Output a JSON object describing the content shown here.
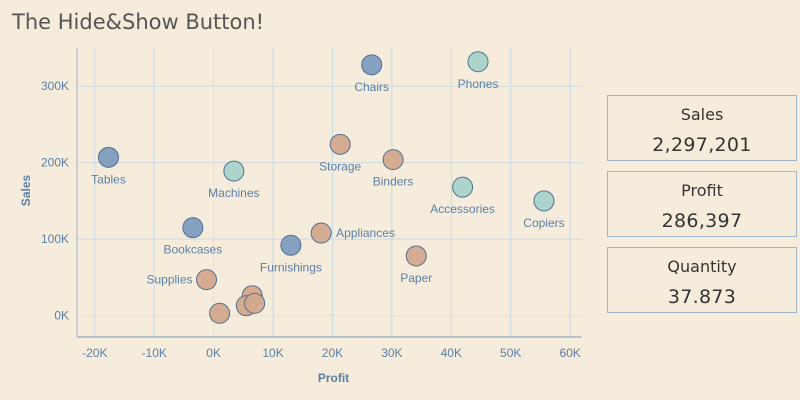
{
  "title": "The Hide&Show Button!",
  "kpis": [
    {
      "label": "Sales",
      "value": "2,297,201"
    },
    {
      "label": "Profit",
      "value": "286,397"
    },
    {
      "label": "Quantity",
      "value": "37.873"
    }
  ],
  "colors": {
    "background": "#f5ecdc",
    "grid": "#cdd9e2",
    "axis": "#9fb5c8",
    "label": "#5b7fa6",
    "text": "#555555",
    "blue": "#7f9dbd",
    "green": "#a9d3c9",
    "tan": "#d3a98c",
    "marker_stroke": "#4f6f94"
  },
  "chart_data": {
    "type": "scatter",
    "title": "",
    "xlabel": "Profit",
    "ylabel": "Sales",
    "xlim": [
      -23000,
      62000
    ],
    "ylim": [
      -28000,
      350000
    ],
    "x_ticks": [
      {
        "value": -20000,
        "label": "-20K"
      },
      {
        "value": -10000,
        "label": "-10K"
      },
      {
        "value": 0,
        "label": "0K"
      },
      {
        "value": 10000,
        "label": "10K"
      },
      {
        "value": 20000,
        "label": "20K"
      },
      {
        "value": 30000,
        "label": "30K"
      },
      {
        "value": 40000,
        "label": "40K"
      },
      {
        "value": 50000,
        "label": "50K"
      },
      {
        "value": 60000,
        "label": "60K"
      }
    ],
    "y_ticks": [
      {
        "value": 0,
        "label": "0K"
      },
      {
        "value": 100000,
        "label": "100K"
      },
      {
        "value": 200000,
        "label": "200K"
      },
      {
        "value": 300000,
        "label": "300K"
      }
    ],
    "grid": true,
    "points": [
      {
        "label": "Chairs",
        "x": 26600,
        "y": 328000,
        "color": "blue",
        "label_pos": "below"
      },
      {
        "label": "Phones",
        "x": 44500,
        "y": 332000,
        "color": "green",
        "label_pos": "below"
      },
      {
        "label": "Tables",
        "x": -17700,
        "y": 207000,
        "color": "blue",
        "label_pos": "below"
      },
      {
        "label": "Machines",
        "x": 3400,
        "y": 189000,
        "color": "green",
        "label_pos": "below"
      },
      {
        "label": "Storage",
        "x": 21300,
        "y": 224000,
        "color": "tan",
        "label_pos": "below"
      },
      {
        "label": "Binders",
        "x": 30200,
        "y": 204000,
        "color": "tan",
        "label_pos": "below"
      },
      {
        "label": "Accessories",
        "x": 41900,
        "y": 168000,
        "color": "green",
        "label_pos": "below"
      },
      {
        "label": "Copiers",
        "x": 55600,
        "y": 150000,
        "color": "green",
        "label_pos": "below"
      },
      {
        "label": "Bookcases",
        "x": -3500,
        "y": 115000,
        "color": "blue",
        "label_pos": "below"
      },
      {
        "label": "Appliances",
        "x": 18100,
        "y": 108000,
        "color": "tan",
        "label_pos": "right"
      },
      {
        "label": "Furnishings",
        "x": 13000,
        "y": 92000,
        "color": "blue",
        "label_pos": "below"
      },
      {
        "label": "Paper",
        "x": 34100,
        "y": 78000,
        "color": "tan",
        "label_pos": "below"
      },
      {
        "label": "Supplies",
        "x": -1200,
        "y": 47000,
        "color": "tan",
        "label_pos": "left"
      },
      {
        "label": "",
        "x": 6500,
        "y": 26000,
        "color": "tan",
        "label_pos": "none"
      },
      {
        "label": "",
        "x": 5500,
        "y": 13000,
        "color": "tan",
        "label_pos": "none"
      },
      {
        "label": "",
        "x": 6900,
        "y": 16000,
        "color": "tan",
        "label_pos": "none"
      },
      {
        "label": "",
        "x": 1000,
        "y": 3000,
        "color": "tan",
        "label_pos": "none"
      }
    ]
  }
}
